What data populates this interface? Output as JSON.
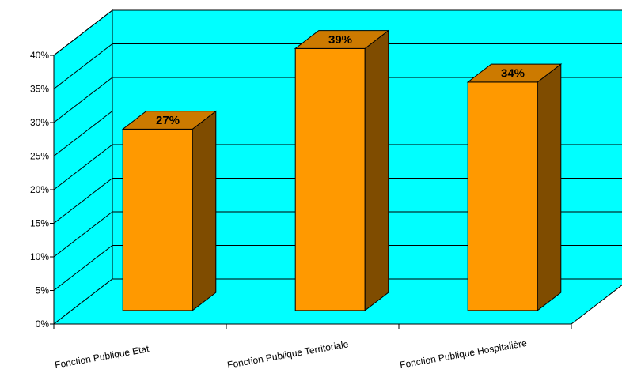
{
  "chart_data": {
    "type": "bar",
    "title": "",
    "xlabel": "",
    "ylabel": "",
    "categories": [
      "Fonction Publique Etat",
      "Fonction Publique Territoriale",
      "Fonction Publique Hospitalière"
    ],
    "values": [
      27,
      39,
      34
    ],
    "data_labels": [
      "27%",
      "39%",
      "34%"
    ],
    "ylim": [
      0,
      40
    ],
    "y_ticks": [
      0,
      5,
      10,
      15,
      20,
      25,
      30,
      35,
      40
    ],
    "y_tick_labels": [
      "0%",
      "5%",
      "10%",
      "15%",
      "20%",
      "25%",
      "30%",
      "35%",
      "40%"
    ],
    "grid": true,
    "legend": "none",
    "three_d": true,
    "colors": {
      "plot_background": "#00ffff",
      "bar_front": "#ff9900",
      "bar_top": "#cc7a00",
      "bar_side": "#7f4c00",
      "grid": "#000000"
    }
  }
}
